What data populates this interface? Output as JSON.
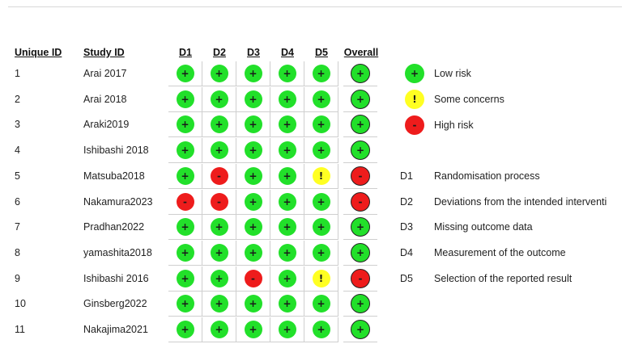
{
  "headers": {
    "unique_id": "Unique ID",
    "study_id": "Study ID",
    "domains": [
      "D1",
      "D2",
      "D3",
      "D4",
      "D5"
    ],
    "overall": "Overall"
  },
  "studies": [
    {
      "id": "1",
      "name": "Arai 2017",
      "d": [
        "low",
        "low",
        "low",
        "low",
        "low"
      ],
      "overall": "low"
    },
    {
      "id": "2",
      "name": "Arai 2018",
      "d": [
        "low",
        "low",
        "low",
        "low",
        "low"
      ],
      "overall": "low"
    },
    {
      "id": "3",
      "name": "Araki2019",
      "d": [
        "low",
        "low",
        "low",
        "low",
        "low"
      ],
      "overall": "low"
    },
    {
      "id": "4",
      "name": "Ishibashi 2018",
      "d": [
        "low",
        "low",
        "low",
        "low",
        "low"
      ],
      "overall": "low"
    },
    {
      "id": "5",
      "name": "Matsuba2018",
      "d": [
        "low",
        "high",
        "low",
        "low",
        "some"
      ],
      "overall": "high"
    },
    {
      "id": "6",
      "name": "Nakamura2023",
      "d": [
        "high",
        "high",
        "low",
        "low",
        "low"
      ],
      "overall": "high"
    },
    {
      "id": "7",
      "name": "Pradhan2022",
      "d": [
        "low",
        "low",
        "low",
        "low",
        "low"
      ],
      "overall": "low"
    },
    {
      "id": "8",
      "name": "yamashita2018",
      "d": [
        "low",
        "low",
        "low",
        "low",
        "low"
      ],
      "overall": "low"
    },
    {
      "id": "9",
      "name": "Ishibashi 2016",
      "d": [
        "low",
        "low",
        "high",
        "low",
        "some"
      ],
      "overall": "high"
    },
    {
      "id": "10",
      "name": "Ginsberg2022",
      "d": [
        "low",
        "low",
        "low",
        "low",
        "low"
      ],
      "overall": "low"
    },
    {
      "id": "11",
      "name": "Nakajima2021",
      "d": [
        "low",
        "low",
        "low",
        "low",
        "low"
      ],
      "overall": "low"
    }
  ],
  "risk_levels": {
    "low": {
      "symbol": "+",
      "label": "Low risk",
      "color": "#22e02a"
    },
    "some": {
      "symbol": "!",
      "label": "Some concerns",
      "color": "#ffff22"
    },
    "high": {
      "symbol": "-",
      "label": "High risk",
      "color": "#ee1c1c"
    }
  },
  "legend_order": [
    "low",
    "some",
    "high"
  ],
  "domain_legend": [
    {
      "code": "D1",
      "desc": "Randomisation process"
    },
    {
      "code": "D2",
      "desc": "Deviations from the intended interventi"
    },
    {
      "code": "D3",
      "desc": "Missing outcome data"
    },
    {
      "code": "D4",
      "desc": "Measurement of the outcome"
    },
    {
      "code": "D5",
      "desc": "Selection of the reported result"
    }
  ]
}
